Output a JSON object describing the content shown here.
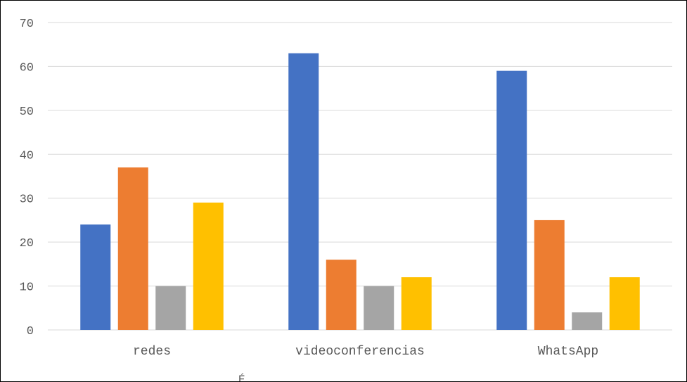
{
  "chart_data": {
    "type": "bar",
    "categories": [
      "redes",
      "videoconferencias",
      "WhatsApp"
    ],
    "series": [
      {
        "values": [
          24,
          63,
          59
        ],
        "color": "#4472C4"
      },
      {
        "values": [
          37,
          16,
          25
        ],
        "color": "#ED7D31"
      },
      {
        "values": [
          10,
          10,
          4
        ],
        "color": "#A5A5A5"
      },
      {
        "values": [
          29,
          12,
          12
        ],
        "color": "#FFC000"
      }
    ],
    "ylim": [
      0,
      70
    ],
    "y_ticks": [
      0,
      10,
      20,
      30,
      40,
      50,
      60,
      70
    ],
    "grid": true,
    "legend": "bottom",
    "legend_visible_fragment": "É",
    "gridline_color": "#D9D9D9",
    "text_color": "#595959"
  }
}
